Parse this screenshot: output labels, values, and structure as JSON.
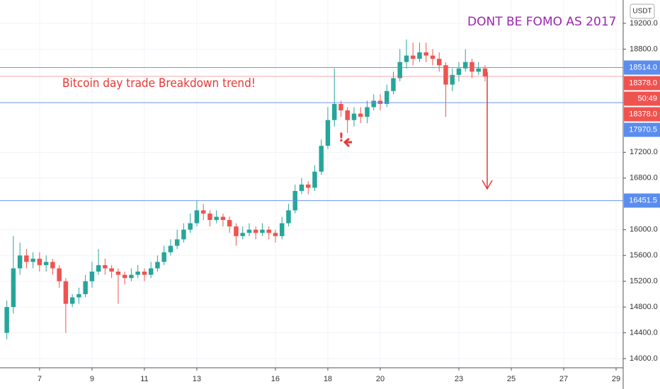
{
  "chart_data": {
    "type": "candlestick",
    "title": "Bitcoin day trade Breakdown trend!",
    "subtitle": "DONT BE FOMO AS 2017",
    "currency": "USDT",
    "countdown": "50:49",
    "up_color": "#26a69a",
    "down_color": "#ef5350",
    "x": [
      5.75,
      6,
      6.25,
      6.5,
      6.75,
      7,
      7.25,
      7.5,
      7.75,
      8,
      8.25,
      8.5,
      8.75,
      9,
      9.25,
      9.5,
      9.75,
      10,
      10.25,
      10.5,
      10.75,
      11,
      11.25,
      11.5,
      11.75,
      12,
      12.25,
      12.5,
      12.75,
      13,
      13.25,
      13.5,
      13.75,
      14,
      14.25,
      14.5,
      14.75,
      15,
      15.25,
      15.5,
      15.75,
      16,
      16.25,
      16.5,
      16.75,
      17,
      17.25,
      17.5,
      17.75,
      18,
      18.25,
      18.5,
      18.75,
      19,
      19.25,
      19.5,
      19.75,
      20,
      20.25,
      20.5,
      20.75,
      21,
      21.25,
      21.5,
      21.75,
      22,
      22.25,
      22.5,
      22.75,
      23,
      23.25,
      23.5,
      23.75,
      24
    ],
    "open": [
      14400,
      14800,
      15400,
      15600,
      15500,
      15550,
      15450,
      15500,
      15400,
      15200,
      14850,
      14950,
      15000,
      15200,
      15350,
      15450,
      15400,
      15350,
      15300,
      15250,
      15300,
      15350,
      15300,
      15400,
      15500,
      15650,
      15750,
      15850,
      16000,
      16100,
      16300,
      16250,
      16150,
      16200,
      16150,
      16050,
      15900,
      15950,
      16000,
      15950,
      16000,
      15950,
      15900,
      16100,
      16300,
      16600,
      16700,
      16650,
      16900,
      17300,
      17700,
      17950,
      17850,
      17700,
      17800,
      17750,
      17900,
      18000,
      17950,
      18150,
      18350,
      18600,
      18700,
      18650,
      18750,
      18700,
      18650,
      18550,
      18250,
      18400,
      18500,
      18600,
      18450,
      18500
    ],
    "high": [
      14900,
      15900,
      15800,
      15700,
      15650,
      15650,
      15600,
      15550,
      15450,
      15250,
      15000,
      15100,
      15300,
      15500,
      15700,
      15550,
      15450,
      15400,
      15350,
      15400,
      15450,
      15400,
      15500,
      15600,
      15750,
      15850,
      16000,
      16100,
      16250,
      16450,
      16400,
      16300,
      16300,
      16250,
      16200,
      16100,
      16050,
      16100,
      16050,
      16100,
      16050,
      16000,
      16200,
      16400,
      16700,
      16800,
      16750,
      17000,
      17400,
      17900,
      18500,
      18000,
      17900,
      17900,
      17900,
      18000,
      18100,
      18100,
      18250,
      18450,
      18800,
      18950,
      18900,
      18900,
      18900,
      18800,
      18750,
      18600,
      18500,
      18600,
      18800,
      18650,
      18600,
      18550
    ],
    "low": [
      14300,
      14700,
      15300,
      15400,
      15400,
      15350,
      15350,
      15300,
      15100,
      14400,
      14800,
      14850,
      14950,
      15100,
      15300,
      15300,
      15250,
      14850,
      15150,
      15200,
      15250,
      15200,
      15250,
      15350,
      15450,
      15600,
      15700,
      15800,
      15950,
      16050,
      16150,
      16050,
      16100,
      16050,
      15950,
      15750,
      15850,
      15900,
      15850,
      15900,
      15850,
      15800,
      15850,
      16050,
      16250,
      16550,
      16550,
      16600,
      16850,
      17250,
      17600,
      17750,
      17500,
      17600,
      17650,
      17650,
      17850,
      17850,
      17900,
      18100,
      18300,
      18500,
      18550,
      18600,
      18600,
      18550,
      18450,
      17750,
      18150,
      18300,
      18450,
      18350,
      18400,
      18300
    ],
    "close": [
      14800,
      15400,
      15600,
      15500,
      15550,
      15450,
      15500,
      15400,
      15200,
      14850,
      14950,
      15000,
      15200,
      15350,
      15450,
      15400,
      15350,
      15300,
      15250,
      15300,
      15350,
      15300,
      15400,
      15500,
      15650,
      15750,
      15850,
      16000,
      16100,
      16300,
      16250,
      16150,
      16200,
      16150,
      16050,
      15900,
      15950,
      16000,
      15950,
      16000,
      15950,
      15900,
      16100,
      16300,
      16600,
      16700,
      16650,
      16900,
      17300,
      17700,
      17950,
      17850,
      17700,
      17800,
      17750,
      17900,
      18000,
      17950,
      18150,
      18350,
      18600,
      18700,
      18650,
      18750,
      18700,
      18650,
      18550,
      18250,
      18400,
      18500,
      18600,
      18450,
      18500,
      18378
    ],
    "xlim": [
      5.49,
      29.27
    ],
    "xticks": [
      7,
      9,
      11,
      13,
      16,
      18,
      20,
      23,
      25,
      27,
      29
    ],
    "ylim": [
      13858,
      19562
    ],
    "yticks": [
      {
        "value": 14000,
        "label": "14000.0"
      },
      {
        "value": 14400,
        "label": "14400.0"
      },
      {
        "value": 14800,
        "label": "14800.0"
      },
      {
        "value": 15200,
        "label": "15200.0"
      },
      {
        "value": 15600,
        "label": "15600.0"
      },
      {
        "value": 16000,
        "label": "16000.0"
      },
      {
        "value": 16800,
        "label": "16800.0"
      },
      {
        "value": 17200,
        "label": "17200.0"
      },
      {
        "value": 18800,
        "label": "18800.0"
      },
      {
        "value": 19200,
        "label": "19200.0"
      }
    ],
    "grid": true,
    "price_lines": [
      {
        "value": 18514,
        "label": "18514.0",
        "color": "#5b8def"
      },
      {
        "value": 18378,
        "label": "18378.0",
        "color": "#ef5350"
      },
      {
        "value": 18378,
        "label": "18378.0",
        "color": "#ef5350"
      },
      {
        "value": 17970.5,
        "label": "17970.5",
        "color": "#5b8def"
      },
      {
        "value": 16451.5,
        "label": "16451.5",
        "color": "#5b8def"
      }
    ],
    "marker": "!"
  }
}
